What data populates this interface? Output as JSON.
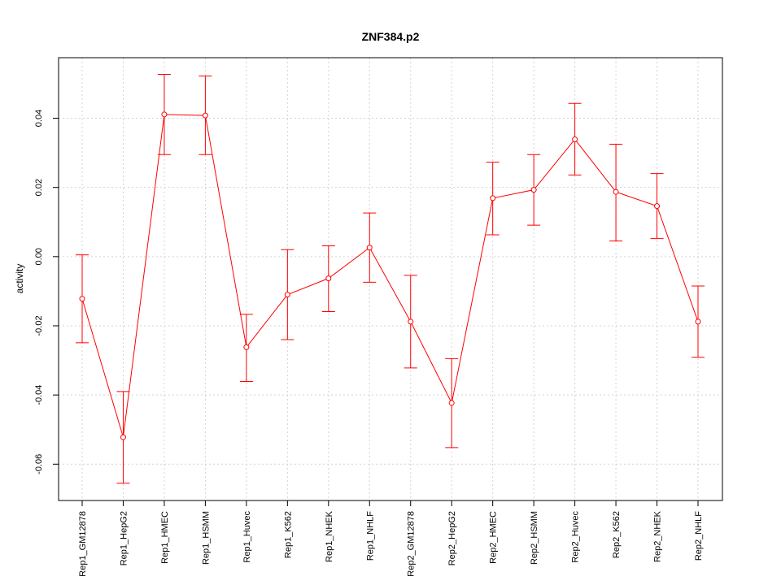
{
  "chart_data": {
    "type": "line",
    "title": "ZNF384.p2",
    "xlabel": "",
    "ylabel": "activity",
    "categories": [
      "Rep1_GM12878",
      "Rep1_HepG2",
      "Rep1_HMEC",
      "Rep1_HSMM",
      "Rep1_Huvec",
      "Rep1_K562",
      "Rep1_NHEK",
      "Rep1_NHLF",
      "Rep2_GM12878",
      "Rep2_HepG2",
      "Rep2_HMEC",
      "Rep2_HSMM",
      "Rep2_Huvec",
      "Rep2_K562",
      "Rep2_NHEK",
      "Rep2_NHLF"
    ],
    "series": [
      {
        "values": [
          -0.0122,
          -0.0522,
          0.0411,
          0.0408,
          -0.0262,
          -0.011,
          -0.0063,
          0.0026,
          -0.0188,
          -0.0423,
          0.0169,
          0.0193,
          0.0339,
          0.0187,
          0.0146,
          -0.0188
        ],
        "upper": [
          0.0005,
          -0.039,
          0.0527,
          0.0522,
          -0.0167,
          0.002,
          0.0031,
          0.0126,
          -0.0054,
          -0.0295,
          0.0273,
          0.0295,
          0.0443,
          0.0325,
          0.024,
          -0.0085
        ],
        "lower": [
          -0.0249,
          -0.0655,
          0.0295,
          0.0295,
          -0.0361,
          -0.024,
          -0.0159,
          -0.0074,
          -0.0322,
          -0.0552,
          0.0063,
          0.0091,
          0.0236,
          0.0045,
          0.0052,
          -0.0291
        ]
      }
    ],
    "yticks": [
      -0.06,
      -0.04,
      -0.02,
      0.0,
      0.02,
      0.04
    ],
    "ytick_labels": [
      "-0.06",
      "-0.04",
      "-0.02",
      "0.00",
      "0.02",
      "0.04"
    ],
    "ylim": [
      -0.0705,
      0.0575
    ],
    "grid": true,
    "colors": {
      "series": "#ff0000",
      "grid": "#d3d3d3",
      "axis": "#000000"
    }
  }
}
